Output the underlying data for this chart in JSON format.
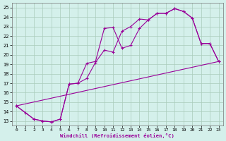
{
  "xlabel": "Windchill (Refroidissement éolien,°C)",
  "bg_color": "#d4f0eb",
  "line_color": "#990099",
  "grid_color": "#aaccbb",
  "xlim": [
    -0.5,
    23.5
  ],
  "ylim": [
    12.5,
    25.5
  ],
  "xticks": [
    0,
    1,
    2,
    3,
    4,
    5,
    6,
    7,
    8,
    9,
    10,
    11,
    12,
    13,
    14,
    15,
    16,
    17,
    18,
    19,
    20,
    21,
    22,
    23
  ],
  "yticks": [
    13,
    14,
    15,
    16,
    17,
    18,
    19,
    20,
    21,
    22,
    23,
    24,
    25
  ],
  "line1_x": [
    0,
    1,
    2,
    3,
    4,
    5,
    6,
    7,
    8,
    9,
    10,
    11,
    12,
    13,
    14,
    15,
    16,
    17,
    18,
    19,
    20,
    21,
    22,
    23
  ],
  "line1_y": [
    14.6,
    13.9,
    13.2,
    13.0,
    12.9,
    13.2,
    16.9,
    17.0,
    17.5,
    19.2,
    20.5,
    20.3,
    22.5,
    23.0,
    23.8,
    23.7,
    24.4,
    24.4,
    24.9,
    24.6,
    23.9,
    21.2,
    21.2,
    19.3
  ],
  "line2_x": [
    0,
    2,
    3,
    4,
    5,
    6,
    7,
    8,
    9,
    10,
    11,
    12,
    13,
    14,
    15,
    16,
    17,
    18,
    19,
    20,
    21,
    22,
    23
  ],
  "line2_y": [
    14.6,
    13.2,
    13.0,
    12.9,
    13.2,
    16.9,
    17.0,
    19.1,
    19.3,
    22.8,
    22.9,
    20.7,
    21.0,
    22.8,
    23.7,
    24.4,
    24.4,
    24.9,
    24.6,
    23.9,
    21.2,
    21.2,
    19.3
  ],
  "line3_x": [
    0,
    23
  ],
  "line3_y": [
    14.6,
    19.3
  ],
  "marker": "+"
}
